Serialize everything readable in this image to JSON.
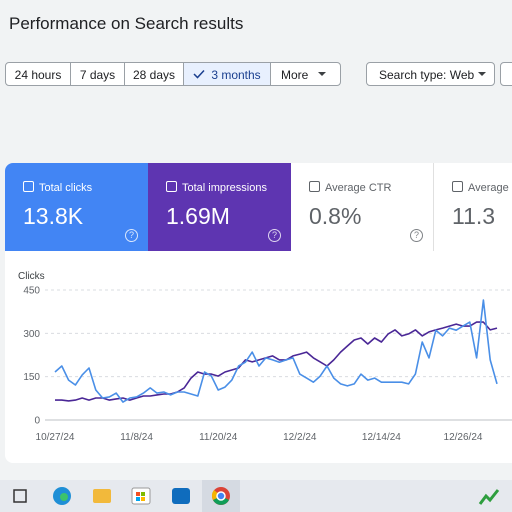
{
  "header": {
    "title": "Performance on Search results"
  },
  "filters": {
    "ranges": [
      "24 hours",
      "7 days",
      "28 days",
      "3 months"
    ],
    "more": "More",
    "search_type": "Search type: Web"
  },
  "cards": [
    {
      "label": "Total clicks",
      "value": "13.8K"
    },
    {
      "label": "Total impressions",
      "value": "1.69M"
    },
    {
      "label": "Average CTR",
      "value": "0.8%"
    },
    {
      "label": "Average position",
      "value": "11.3"
    }
  ],
  "chart_data": {
    "type": "line",
    "y_label": "Clicks",
    "categories": [
      "10/27/24",
      null,
      null,
      null,
      null,
      null,
      null,
      null,
      null,
      null,
      null,
      null,
      "11/8/24",
      null,
      null,
      null,
      null,
      null,
      null,
      null,
      null,
      null,
      null,
      null,
      "11/20/24",
      null,
      null,
      null,
      null,
      null,
      null,
      null,
      null,
      null,
      null,
      null,
      "12/2/24",
      null,
      null,
      null,
      null,
      null,
      null,
      null,
      null,
      null,
      null,
      null,
      "12/14/24",
      null,
      null,
      null,
      null,
      null,
      null,
      null,
      null,
      null,
      null,
      null,
      "12/26/24",
      null,
      null,
      null,
      null,
      null
    ],
    "ylim": [
      0,
      450
    ],
    "yticks": [
      0,
      150,
      300,
      450
    ],
    "y2lim": [
      0,
      45000
    ],
    "grid": true,
    "series": [
      {
        "name": "Total clicks",
        "color": "#4a8fe7",
        "values": [
          166,
          187,
          138,
          121,
          156,
          180,
          104,
          76,
          80,
          93,
          62,
          76,
          80,
          93,
          111,
          93,
          97,
          87,
          97,
          97,
          90,
          83,
          166,
          152,
          104,
          114,
          138,
          187,
          200,
          235,
          187,
          215,
          208,
          200,
          208,
          215,
          159,
          145,
          131,
          152,
          187,
          145,
          125,
          118,
          125,
          159,
          138,
          145,
          131,
          131,
          131,
          131,
          125,
          159,
          270,
          215,
          311,
          291,
          318,
          311,
          325,
          339,
          215,
          415,
          208,
          125
        ]
      },
      {
        "name": "Total impressions",
        "color": "#4a2796",
        "axis": "y2",
        "values": [
          6900,
          6900,
          6600,
          6900,
          7600,
          6900,
          7600,
          7600,
          6900,
          7300,
          7600,
          6900,
          7600,
          8300,
          8300,
          8700,
          9000,
          9000,
          9700,
          11100,
          14500,
          16600,
          15900,
          15900,
          15200,
          16600,
          17300,
          18000,
          20800,
          20100,
          20800,
          21500,
          22200,
          20800,
          20800,
          22200,
          22800,
          23500,
          21500,
          20100,
          18700,
          20800,
          23500,
          25600,
          27700,
          28400,
          26300,
          28400,
          27000,
          29800,
          31200,
          29100,
          29800,
          31200,
          29100,
          30500,
          31200,
          31800,
          32500,
          33200,
          32500,
          32500,
          33900,
          33900,
          31200,
          31800
        ]
      }
    ]
  }
}
